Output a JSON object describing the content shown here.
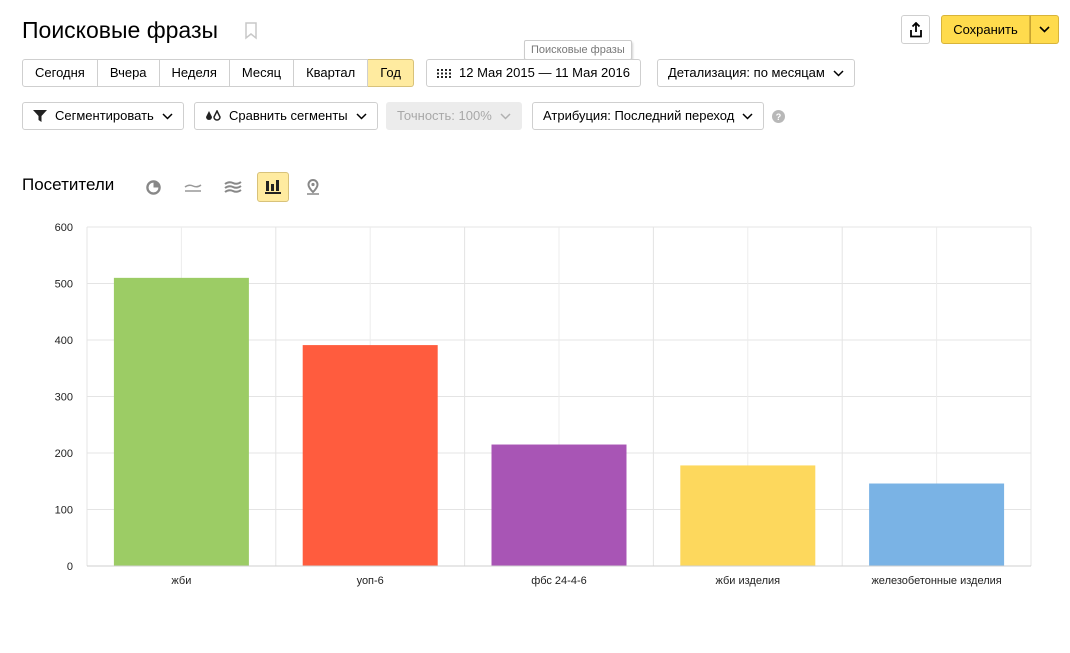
{
  "header": {
    "title": "Поисковые фразы",
    "tooltip": "Поисковые фразы",
    "save_label": "Сохранить"
  },
  "toolbar": {
    "periods": [
      {
        "label": "Сегодня",
        "active": false
      },
      {
        "label": "Вчера",
        "active": false
      },
      {
        "label": "Неделя",
        "active": false
      },
      {
        "label": "Месяц",
        "active": false
      },
      {
        "label": "Квартал",
        "active": false
      },
      {
        "label": "Год",
        "active": true
      }
    ],
    "date_range": "12 Мая 2015 — 11 Мая 2016",
    "detail_label": "Детализация: по месяцам",
    "segment_label": "Сегментировать",
    "compare_label": "Сравнить сегменты",
    "accuracy_label": "Точность: 100%",
    "attribution_label": "Атрибуция: Последний переход"
  },
  "section": {
    "title": "Посетители",
    "viz_icons": [
      "pie-chart-icon",
      "line-chart-icon",
      "area-chart-icon",
      "bar-chart-icon",
      "map-icon"
    ],
    "active_viz": "bar-chart-icon"
  },
  "colors": {
    "accent": "#ffdb4d",
    "active_bg": "#ffeba0"
  },
  "chart_data": {
    "type": "bar",
    "categories": [
      "жби",
      "уоп-6",
      "фбс 24-4-6",
      "жби изделия",
      "железобетонные изделия"
    ],
    "values": [
      510,
      391,
      215,
      178,
      146
    ],
    "colors": [
      "#9ccc65",
      "#ff5c3e",
      "#a855b5",
      "#fdd85d",
      "#7ab3e5"
    ],
    "ylim": [
      0,
      600
    ],
    "yticks": [
      0,
      100,
      200,
      300,
      400,
      500,
      600
    ],
    "grid": true
  }
}
